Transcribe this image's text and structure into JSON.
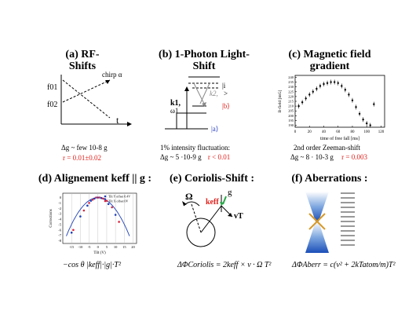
{
  "panels": {
    "a": {
      "title_l1": "(a) RF-",
      "title_l2": "Shifts",
      "chirp": "chirp α",
      "f01": "f01",
      "f02": "f02",
      "t_axis": "t",
      "line1": "Δg ~ few 10-8 g",
      "line2": "r = 0.01±0.02"
    },
    "b": {
      "title_l1": "(b) 1-Photon Light-",
      "title_l2": "Shift",
      "level_i": "|i",
      "level_i2": ">",
      "level_b": "|b⟩",
      "level_a": "|a⟩",
      "k1": "k1,",
      "w1": "ω1",
      "k2": "k2,",
      "line1": "1% intensity fluctuation:",
      "line2a": "Δg ~ 5 ·10-9 g",
      "line2b": "r < 0.01"
    },
    "c": {
      "title_l1": "(c) Magnetic field",
      "title_l2": "gradient",
      "ylabel": "B-field [mG]",
      "xlabel": "time of free fall [ms]",
      "line1": "2nd order Zeeman-shift",
      "line2a": "Δg ~ 8 · 10-3 g",
      "line2b": "r = 0.003"
    },
    "d": {
      "title": "(d) Alignement keff || g :",
      "xlabel": "Tilt (V)",
      "ylabel": "Corrections",
      "legend1": "Tilt Y offset 0.4V",
      "legend2": "Tilt X offset 0V",
      "formula": "−cos θ |keff|·|g|·T²"
    },
    "e": {
      "title": "(e) Coriolis-Shift :",
      "omega": "Ω",
      "keff": "keff",
      "g": "g",
      "vt": "vT",
      "formula": "ΔΦCoriolis = 2keff × v · Ω T²"
    },
    "f": {
      "title": "(f) Aberrations :",
      "formula": "ΔΦAberr = c(v² + 2kTatom/m)T²"
    }
  },
  "chart_data": [
    {
      "type": "scatter",
      "title": "",
      "xlabel": "time of free fall [ms]",
      "ylabel": "B-field [mG]",
      "x": [
        5,
        10,
        15,
        20,
        25,
        30,
        35,
        40,
        45,
        50,
        55,
        60,
        65,
        70,
        75,
        80,
        85,
        90,
        95,
        100,
        105,
        110
      ],
      "y": [
        210,
        214,
        218,
        222,
        225,
        228,
        231,
        233,
        234,
        235,
        235,
        234,
        231,
        227,
        222,
        216,
        209,
        202,
        196,
        192,
        190,
        212
      ],
      "x_ticks": [
        0,
        20,
        40,
        60,
        80,
        100,
        120
      ],
      "y_ticks": [
        190,
        195,
        200,
        205,
        210,
        215,
        220,
        225,
        230,
        235,
        240
      ],
      "xlim": [
        0,
        125
      ],
      "ylim": [
        188,
        242
      ]
    },
    {
      "type": "scatter",
      "title": "",
      "xlabel": "Tilt (V)",
      "ylabel": "Corrections",
      "series": [
        {
          "name": "Tilt Y offset 0.4V",
          "x": [
            -15,
            -10,
            -6,
            -4,
            -2,
            0,
            2,
            4,
            6,
            10
          ],
          "y": [
            -6.5,
            -3.5,
            -1.5,
            -0.6,
            -0.2,
            0,
            -0.1,
            -0.3,
            -1.2,
            -3.2
          ]
        },
        {
          "name": "Tilt X offset 0V",
          "x": [
            -14,
            -8,
            -5,
            -3,
            -1,
            1,
            3,
            5,
            8,
            12
          ],
          "y": [
            -6.0,
            -2.4,
            -1.0,
            -0.4,
            0,
            0,
            -0.2,
            -0.6,
            -1.8,
            -4.5
          ]
        }
      ],
      "x_ticks": [
        -15,
        -10,
        -5,
        0,
        5,
        10,
        15,
        20
      ],
      "y_ticks": [
        0,
        -1,
        -2,
        -3,
        -4,
        -5,
        -6,
        -7,
        -8
      ],
      "xlim": [
        -20,
        22
      ],
      "ylim": [
        -8.5,
        0.8
      ]
    }
  ]
}
